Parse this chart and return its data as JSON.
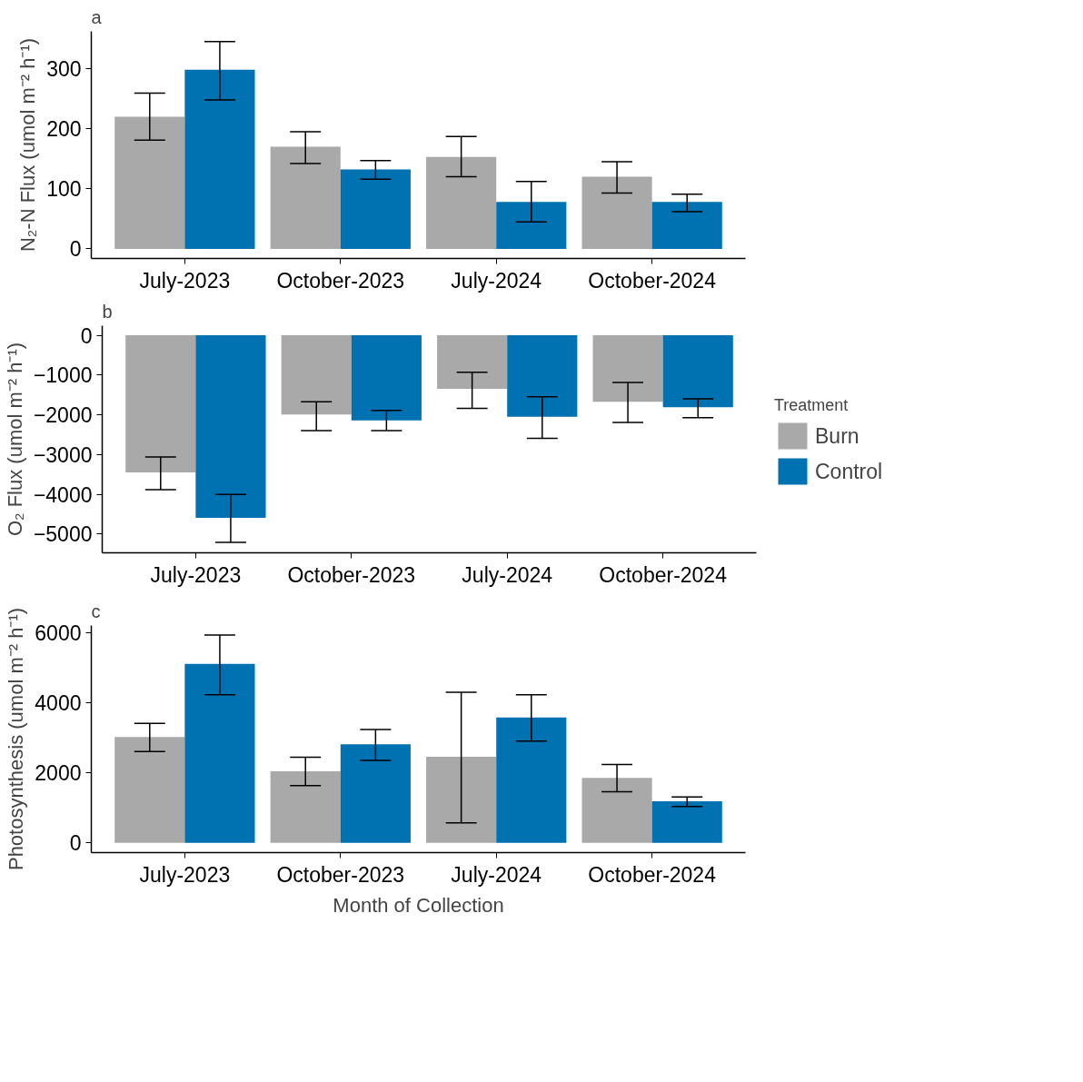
{
  "chart_data": [
    {
      "type": "bar",
      "title": "a",
      "ylabel": "N₂-N Flux (umol m⁻² h⁻¹)",
      "categories": [
        "July-2023",
        "October-2023",
        "July-2024",
        "October-2024"
      ],
      "ylim": [
        -16,
        362
      ],
      "yticks": [
        0,
        100,
        200,
        300
      ],
      "grid": false,
      "series": [
        {
          "color": "#a9a9a9",
          "values": [
            220,
            170,
            153,
            120
          ],
          "errors": [
            [
              181,
              259
            ],
            [
              142,
              195
            ],
            [
              120,
              187
            ],
            [
              93,
              145
            ]
          ]
        },
        {
          "color": "#0072b2",
          "values": [
            298,
            132,
            78,
            78
          ],
          "errors": [
            [
              248,
              345
            ],
            [
              116,
              147
            ],
            [
              45,
              112
            ],
            [
              62,
              91
            ]
          ]
        }
      ]
    },
    {
      "type": "bar",
      "title": "b",
      "ylabel": "O₂ Flux (umol m⁻² h⁻¹)",
      "categories": [
        "July-2023",
        "October-2023",
        "July-2024",
        "October-2024"
      ],
      "ylim": [
        -5470,
        240
      ],
      "yticks": [
        -5000,
        -4000,
        -3000,
        -2000,
        -1000,
        0
      ],
      "grid": false,
      "legend": "right",
      "legend_title": "Treatment",
      "series": [
        {
          "name": "Burn",
          "color": "#a9a9a9",
          "values": [
            -3450,
            -1990,
            -1350,
            -1670
          ],
          "errors": [
            [
              -3880,
              -3060
            ],
            [
              -2400,
              -1670
            ],
            [
              -1840,
              -930
            ],
            [
              -2190,
              -1190
            ]
          ]
        },
        {
          "name": "Control",
          "color": "#0072b2",
          "values": [
            -4590,
            -2140,
            -2050,
            -1810
          ],
          "errors": [
            [
              -5210,
              -4000
            ],
            [
              -2400,
              -1890
            ],
            [
              -2590,
              -1550
            ],
            [
              -2070,
              -1600
            ]
          ]
        }
      ]
    },
    {
      "type": "bar",
      "title": "c",
      "xlabel": "Month of Collection",
      "ylabel": "Photosynthesis (umol m⁻² h⁻¹)",
      "categories": [
        "July-2023",
        "October-2023",
        "July-2024",
        "October-2024"
      ],
      "ylim": [
        -280,
        6220
      ],
      "yticks": [
        0,
        2000,
        4000,
        6000
      ],
      "grid": false,
      "series": [
        {
          "color": "#a9a9a9",
          "values": [
            3030,
            2050,
            2460,
            1860
          ],
          "errors": [
            [
              2610,
              3420
            ],
            [
              1640,
              2450
            ],
            [
              570,
              4310
            ],
            [
              1460,
              2240
            ]
          ]
        },
        {
          "color": "#0072b2",
          "values": [
            5120,
            2820,
            3590,
            1190
          ],
          "errors": [
            [
              4240,
              5950
            ],
            [
              2360,
              3240
            ],
            [
              2910,
              4240
            ],
            [
              1040,
              1310
            ]
          ]
        }
      ]
    }
  ]
}
